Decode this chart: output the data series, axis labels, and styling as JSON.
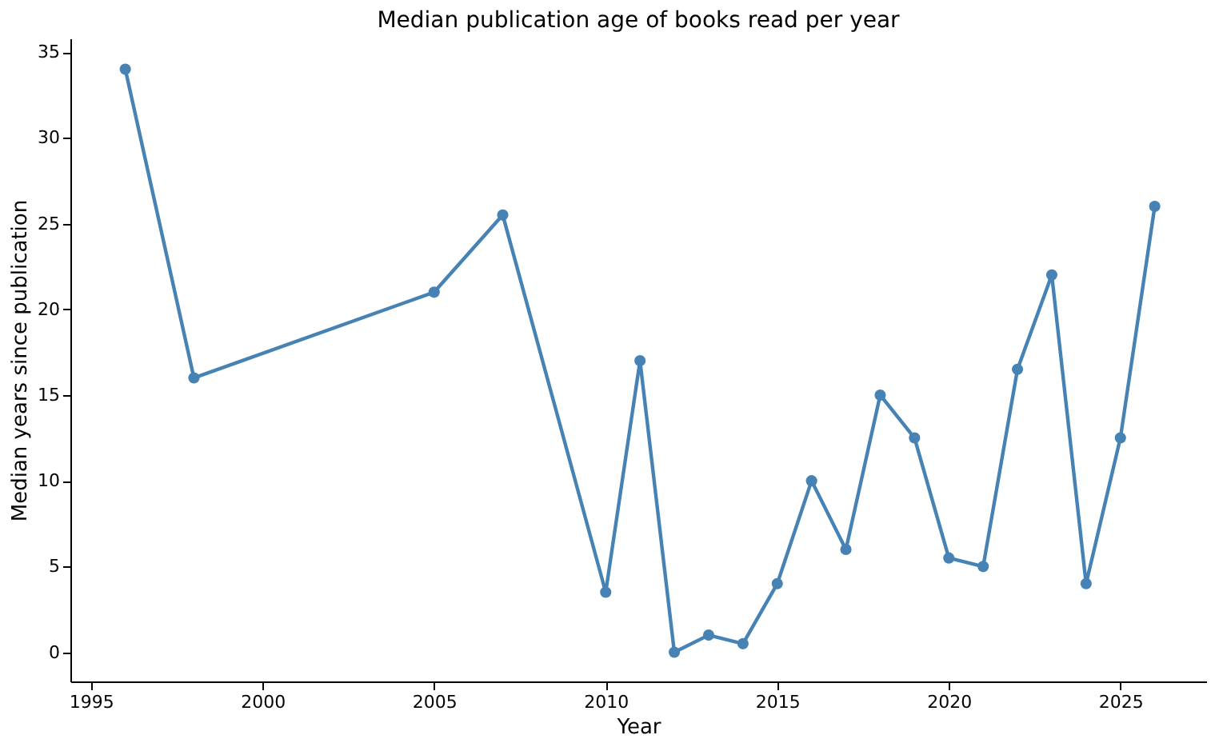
{
  "chart_data": {
    "type": "line",
    "title": "Median publication age of books read per year",
    "xlabel": "Year",
    "ylabel": "Median years since publication",
    "x": [
      1996,
      1998,
      2005,
      2007,
      2010,
      2011,
      2012,
      2013,
      2014,
      2015,
      2016,
      2017,
      2018,
      2019,
      2020,
      2021,
      2022,
      2023,
      2024,
      2025,
      2026
    ],
    "series": [
      {
        "color": "#4682b4",
        "values": [
          34,
          16,
          21,
          25.5,
          3.5,
          17,
          0,
          1,
          0.5,
          4,
          10,
          6,
          15,
          12.5,
          5.5,
          5,
          16.5,
          22,
          4,
          12.5,
          26
        ]
      }
    ],
    "xlim": [
      1994.4,
      2027.5
    ],
    "xticks": [
      1995,
      2000,
      2005,
      2010,
      2015,
      2020,
      2025
    ],
    "ylim": [
      -1.7,
      35.8
    ],
    "yticks": [
      0,
      5,
      10,
      15,
      20,
      25,
      30,
      35
    ],
    "grid": false,
    "legend": false,
    "marker": "circle",
    "line_style": "solid"
  }
}
